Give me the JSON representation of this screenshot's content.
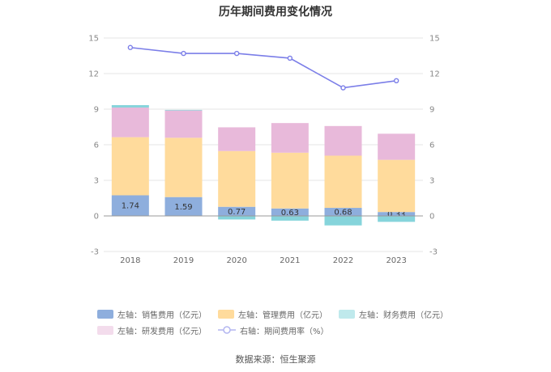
{
  "chart_data": {
    "type": "bar",
    "title": "历年期间费用变化情况",
    "categories": [
      "2018",
      "2019",
      "2020",
      "2021",
      "2022",
      "2023"
    ],
    "series": [
      {
        "name": "左轴：销售费用（亿元）",
        "axis": "left",
        "color": "#8eaedd",
        "values": [
          1.74,
          1.59,
          0.77,
          0.63,
          0.68,
          0.33
        ],
        "show_labels": true
      },
      {
        "name": "左轴：管理费用（亿元）",
        "axis": "left",
        "color": "#ffdb9c",
        "values": [
          4.9,
          5.0,
          4.7,
          4.7,
          4.4,
          4.4
        ]
      },
      {
        "name": "左轴：财务费用（亿元）",
        "axis": "left",
        "color": "#86d4db",
        "values": [
          0.2,
          0.05,
          -0.3,
          -0.4,
          -0.8,
          -0.5
        ]
      },
      {
        "name": "左轴：研发费用（亿元）",
        "axis": "left",
        "color": "#e8b9da",
        "values": [
          2.5,
          2.3,
          2.0,
          2.5,
          2.5,
          2.2
        ]
      },
      {
        "name": "右轴：期间费用率（%）",
        "axis": "right",
        "type": "line",
        "color": "#7b7ee8",
        "values": [
          14.2,
          13.7,
          13.7,
          13.3,
          10.8,
          11.4
        ]
      }
    ],
    "y_left": {
      "min": -3,
      "max": 15,
      "ticks": [
        -3,
        0,
        3,
        6,
        9,
        12,
        15
      ]
    },
    "y_right": {
      "min": -3,
      "max": 15,
      "ticks": [
        -3,
        0,
        3,
        6,
        9,
        12,
        15
      ]
    },
    "grid": true,
    "legend_position": "bottom"
  },
  "footer": {
    "source": "数据来源：恒生聚源"
  }
}
